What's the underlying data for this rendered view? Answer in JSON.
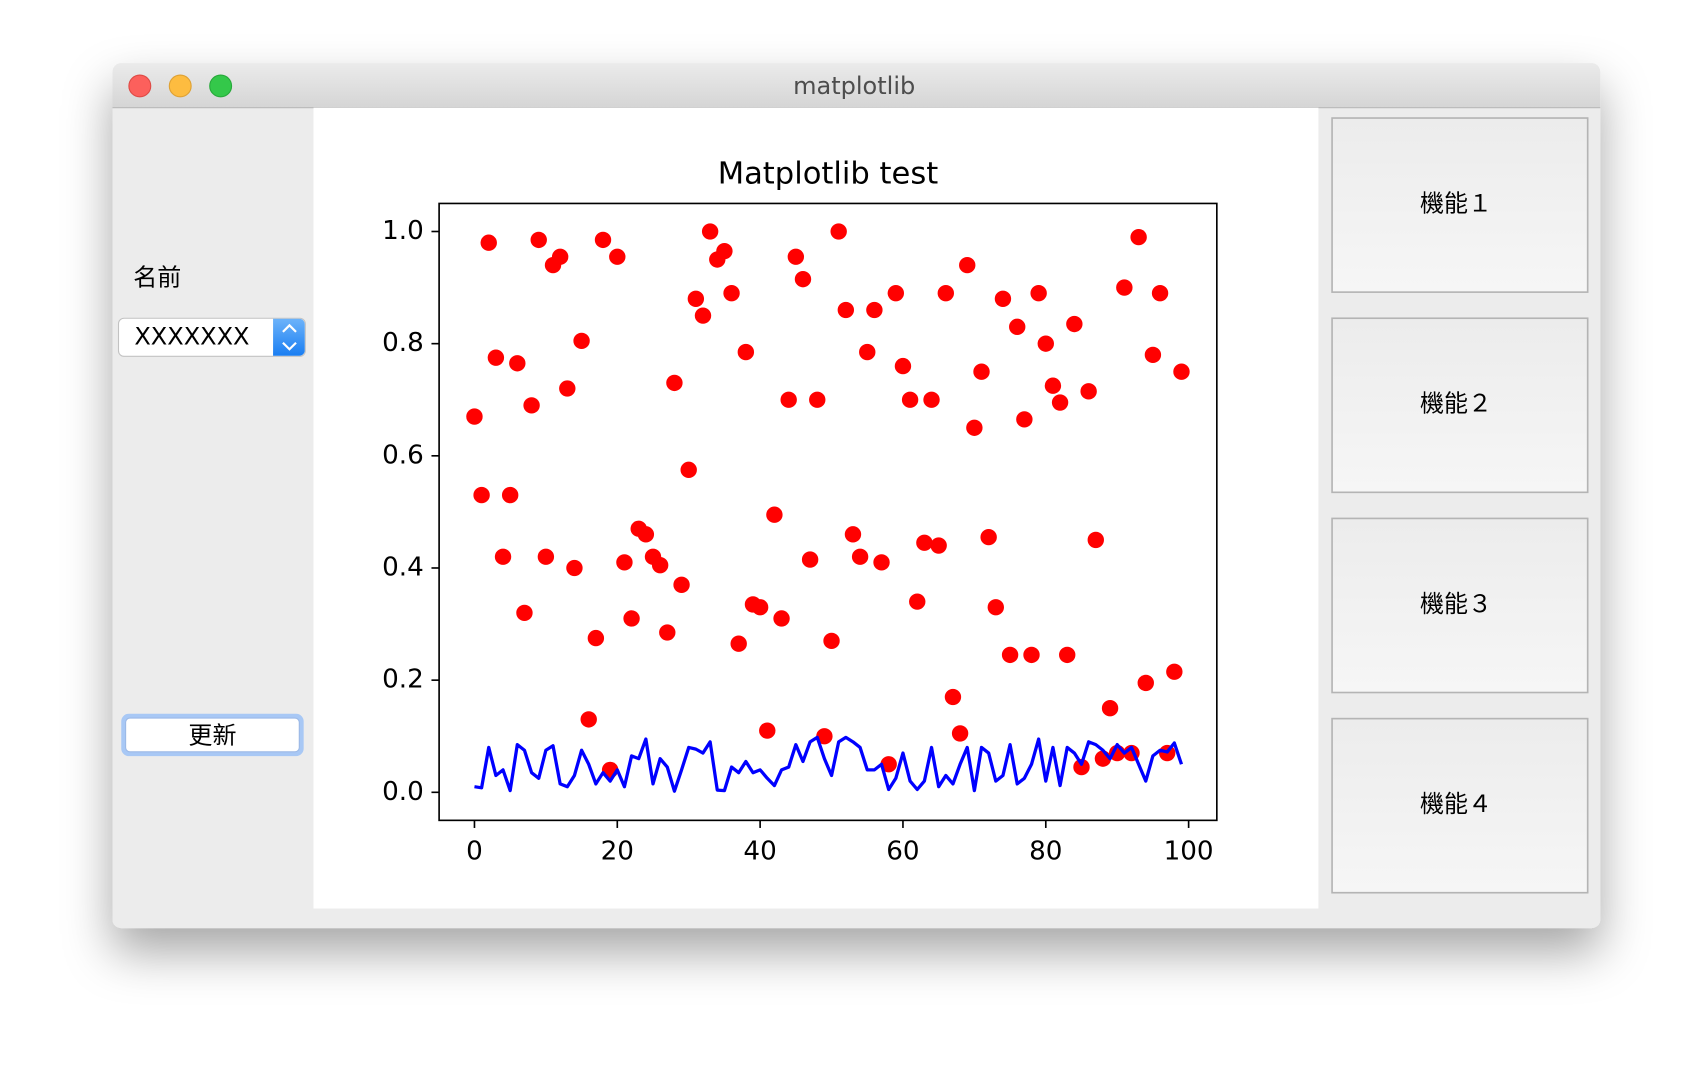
{
  "window": {
    "title": "matplotlib"
  },
  "sidebar": {
    "name_label": "名前",
    "combo_value": "XXXXXXX",
    "update_button": "更新"
  },
  "buttons": [
    "機能１",
    "機能２",
    "機能３",
    "機能４"
  ],
  "chart_data": {
    "type": "scatter",
    "title": "Matplotlib test",
    "x": [
      0,
      1,
      2,
      3,
      4,
      5,
      6,
      7,
      8,
      9,
      10,
      11,
      12,
      13,
      14,
      15,
      16,
      17,
      18,
      19,
      20,
      21,
      22,
      23,
      24,
      25,
      26,
      27,
      28,
      29,
      30,
      31,
      32,
      33,
      34,
      35,
      36,
      37,
      38,
      39,
      40,
      41,
      42,
      43,
      44,
      45,
      46,
      47,
      48,
      49,
      50,
      51,
      52,
      53,
      54,
      55,
      56,
      57,
      58,
      59,
      60,
      61,
      62,
      63,
      64,
      65,
      66,
      67,
      68,
      69,
      70,
      71,
      72,
      73,
      74,
      75,
      76,
      77,
      78,
      79,
      80,
      81,
      82,
      83,
      84,
      85,
      86,
      87,
      88,
      89,
      90,
      91,
      92,
      93,
      94,
      95,
      96,
      97,
      98,
      99
    ],
    "series": [
      {
        "type": "scatter",
        "color": "#ff0000",
        "values": [
          0.67,
          0.53,
          0.98,
          0.775,
          0.42,
          0.53,
          0.765,
          0.32,
          0.69,
          0.985,
          0.42,
          0.94,
          0.955,
          0.72,
          0.4,
          0.805,
          0.13,
          0.275,
          0.985,
          0.04,
          0.955,
          0.41,
          0.31,
          0.47,
          0.46,
          0.42,
          0.405,
          0.285,
          0.73,
          0.37,
          0.575,
          0.88,
          0.85,
          1.0,
          0.95,
          0.965,
          0.89,
          0.265,
          0.785,
          0.335,
          0.33,
          0.11,
          0.495,
          0.31,
          0.7,
          0.955,
          0.915,
          0.415,
          0.7,
          0.1,
          0.27,
          1.0,
          0.86,
          0.46,
          0.42,
          0.785,
          0.86,
          0.41,
          0.05,
          0.89,
          0.76,
          0.7,
          0.34,
          0.445,
          0.7,
          0.44,
          0.89,
          0.17,
          0.105,
          0.94,
          0.65,
          0.75,
          0.455,
          0.33,
          0.88,
          0.245,
          0.83,
          0.665,
          0.245,
          0.89,
          0.8,
          0.725,
          0.695,
          0.245,
          0.835,
          0.045,
          0.715,
          0.45,
          0.06,
          0.15,
          0.07,
          0.9,
          0.07,
          0.99,
          0.195,
          0.78,
          0.89,
          0.07,
          0.215,
          0.75
        ]
      },
      {
        "type": "line",
        "color": "#0000ff",
        "values": [
          0.01,
          0.008,
          0.08,
          0.03,
          0.04,
          0.003,
          0.085,
          0.075,
          0.035,
          0.025,
          0.075,
          0.083,
          0.015,
          0.01,
          0.03,
          0.075,
          0.05,
          0.015,
          0.035,
          0.02,
          0.04,
          0.01,
          0.065,
          0.06,
          0.095,
          0.015,
          0.06,
          0.045,
          0.002,
          0.04,
          0.08,
          0.077,
          0.07,
          0.09,
          0.004,
          0.003,
          0.045,
          0.035,
          0.055,
          0.035,
          0.04,
          0.025,
          0.012,
          0.04,
          0.045,
          0.085,
          0.055,
          0.09,
          0.098,
          0.06,
          0.03,
          0.09,
          0.098,
          0.09,
          0.08,
          0.04,
          0.04,
          0.05,
          0.005,
          0.025,
          0.07,
          0.02,
          0.005,
          0.02,
          0.08,
          0.01,
          0.03,
          0.015,
          0.05,
          0.08,
          0.003,
          0.08,
          0.07,
          0.02,
          0.03,
          0.085,
          0.015,
          0.025,
          0.05,
          0.095,
          0.02,
          0.08,
          0.012,
          0.08,
          0.07,
          0.05,
          0.09,
          0.085,
          0.075,
          0.06,
          0.085,
          0.07,
          0.08,
          0.05,
          0.02,
          0.065,
          0.075,
          0.072,
          0.088,
          0.05
        ]
      }
    ],
    "xlim": [
      -4.95,
      103.95
    ],
    "ylim": [
      -0.05,
      1.05
    ],
    "xticks": [
      0,
      20,
      40,
      60,
      80,
      100
    ],
    "yticks": [
      {
        "value": 0,
        "label": "0.0"
      },
      0.2,
      0.4,
      0.6,
      0.8,
      {
        "value": 1,
        "label": "1.0"
      }
    ],
    "grid": false
  }
}
